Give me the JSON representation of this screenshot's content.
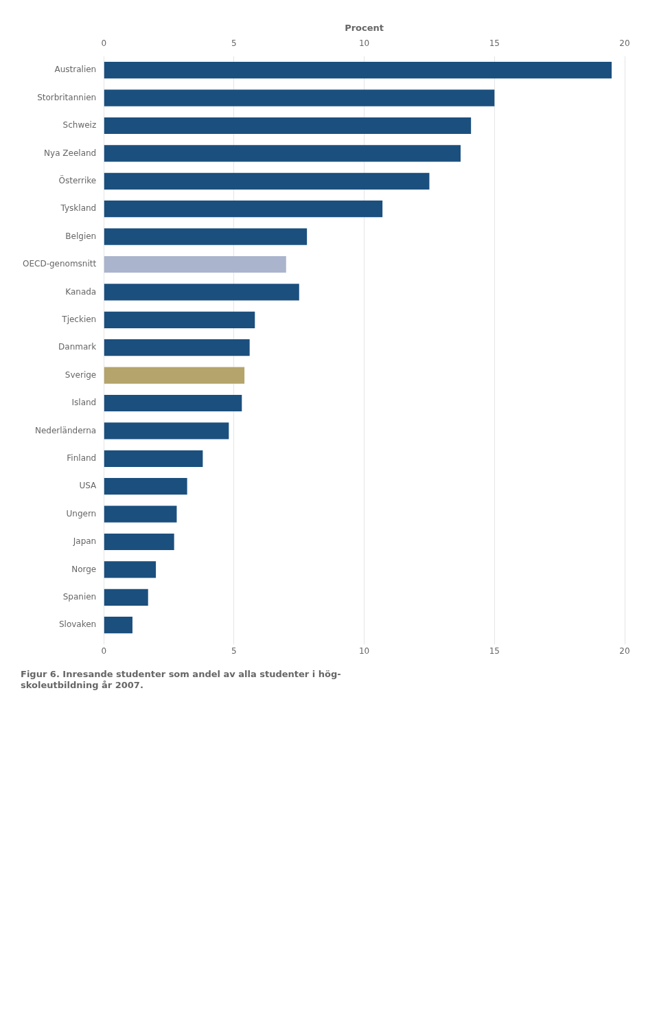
{
  "chart_data": {
    "type": "bar",
    "orientation": "horizontal",
    "x_label": "Procent",
    "caption": [
      "Figur 6. Inresande studenter som andel av alla studenter i hög-",
      "skoleutbildning år 2007."
    ],
    "categories": [
      "Australien",
      "Storbritannien",
      "Schweiz",
      "Nya Zeeland",
      "Österrike",
      "Tyskland",
      "Belgien",
      "OECD-genomsnitt",
      "Kanada",
      "Tjeckien",
      "Danmark",
      "Sverige",
      "Island",
      "Nederländerna",
      "Finland",
      "USA",
      "Ungern",
      "Japan",
      "Norge",
      "Spanien",
      "Slovaken"
    ],
    "values": [
      19.5,
      15.0,
      14.1,
      13.7,
      12.5,
      10.7,
      7.8,
      7.0,
      7.5,
      5.8,
      5.6,
      5.4,
      5.3,
      4.8,
      3.8,
      3.2,
      2.8,
      2.7,
      2.0,
      1.7,
      1.1
    ],
    "colors": [
      "#1b4f7e",
      "#1b4f7e",
      "#1b4f7e",
      "#1b4f7e",
      "#1b4f7e",
      "#1b4f7e",
      "#1b4f7e",
      "#aab4cc",
      "#1b4f7e",
      "#1b4f7e",
      "#1b4f7e",
      "#b5a46b",
      "#1b4f7e",
      "#1b4f7e",
      "#1b4f7e",
      "#1b4f7e",
      "#1b4f7e",
      "#1b4f7e",
      "#1b4f7e",
      "#1b4f7e",
      "#1b4f7e"
    ],
    "xlim": [
      0,
      20
    ],
    "xticks": [
      0,
      5,
      10,
      15,
      20
    ],
    "grid": true
  }
}
